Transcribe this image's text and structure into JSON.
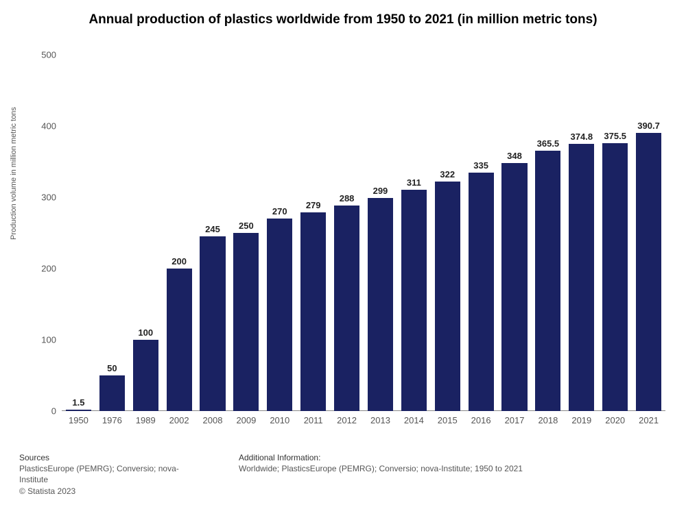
{
  "chart": {
    "type": "bar",
    "title": "Annual production of plastics worldwide from 1950 to 2021 (in million metric tons)",
    "title_fontsize": 19,
    "ylabel": "Production volume in million metric tons",
    "ylabel_fontsize": 11,
    "ylim": [
      0,
      500
    ],
    "ytick_step": 100,
    "yticks": [
      0,
      100,
      200,
      300,
      400,
      500
    ],
    "categories": [
      "1950",
      "1976",
      "1989",
      "2002",
      "2008",
      "2009",
      "2010",
      "2011",
      "2012",
      "2013",
      "2014",
      "2015",
      "2016",
      "2017",
      "2018",
      "2019",
      "2020",
      "2021"
    ],
    "values": [
      1.5,
      50,
      100,
      200,
      245,
      250,
      270,
      279,
      288,
      299,
      311,
      322,
      335,
      348,
      365.5,
      374.8,
      375.5,
      390.7
    ],
    "bar_color": "#1a2262",
    "background_color": "#ffffff",
    "axis_color": "#888888",
    "tick_label_color": "#555555",
    "tick_label_fontsize": 13,
    "value_label_fontsize": 13,
    "value_label_color": "#222222",
    "bar_width": 0.76
  },
  "footer": {
    "sources_heading": "Sources",
    "sources_text": "PlasticsEurope (PEMRG); Conversio; nova-Institute",
    "copyright": "© Statista 2023",
    "info_heading": "Additional Information:",
    "info_text": "Worldwide; PlasticsEurope (PEMRG); Conversio; nova-Institute; 1950 to 2021",
    "fontsize": 12
  }
}
